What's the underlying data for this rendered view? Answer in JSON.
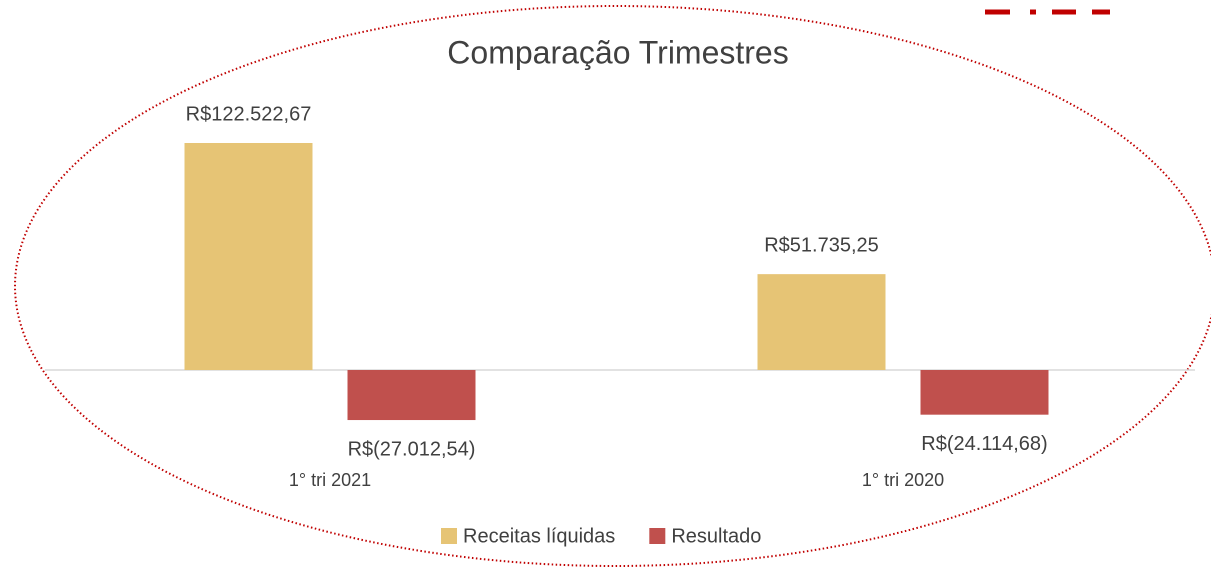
{
  "chart_data": {
    "type": "bar",
    "title": "Comparação Trimestres",
    "categories": [
      "1° tri 2021",
      "1° tri 2020"
    ],
    "series": [
      {
        "name": "Receitas líquidas",
        "color": "#e6c475",
        "values": [
          122522.67,
          51735.25
        ],
        "value_labels": [
          "R$122.522,67",
          "R$51.735,25"
        ]
      },
      {
        "name": "Resultado",
        "color": "#c0504d",
        "values": [
          -27012.54,
          -24114.68
        ],
        "value_labels": [
          "R$(27.012,54)",
          "R$(24.114,68)"
        ]
      }
    ],
    "legend": "bottom"
  }
}
